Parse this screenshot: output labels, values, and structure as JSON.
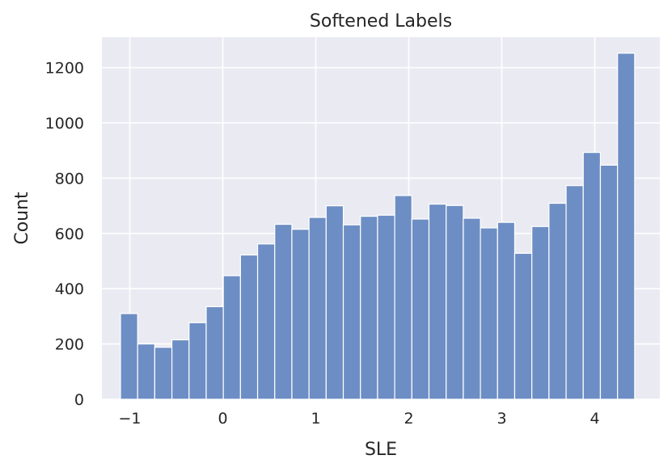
{
  "chart_data": {
    "type": "bar",
    "title": "Softened Labels",
    "xlabel": "SLE",
    "ylabel": "Count",
    "xlim": [
      -1.3,
      4.7
    ],
    "ylim": [
      0,
      1310
    ],
    "xticks": [
      -1,
      0,
      1,
      2,
      3,
      4
    ],
    "xtick_labels": [
      "−1",
      "0",
      "1",
      "2",
      "3",
      "4"
    ],
    "yticks": [
      0,
      200,
      400,
      600,
      800,
      1000,
      1200
    ],
    "ytick_labels": [
      "0",
      "200",
      "400",
      "600",
      "800",
      "1000",
      "1200"
    ],
    "bin_start": -1.1,
    "bin_width": 0.1843,
    "values": [
      310,
      200,
      188,
      215,
      277,
      335,
      447,
      522,
      562,
      633,
      615,
      658,
      700,
      631,
      662,
      666,
      737,
      652,
      706,
      701,
      655,
      620,
      640,
      528,
      625,
      709,
      773,
      893,
      847,
      1252
    ],
    "bar_color": "#6d8ec4",
    "background_color": "#eaeaf2",
    "grid": true
  }
}
